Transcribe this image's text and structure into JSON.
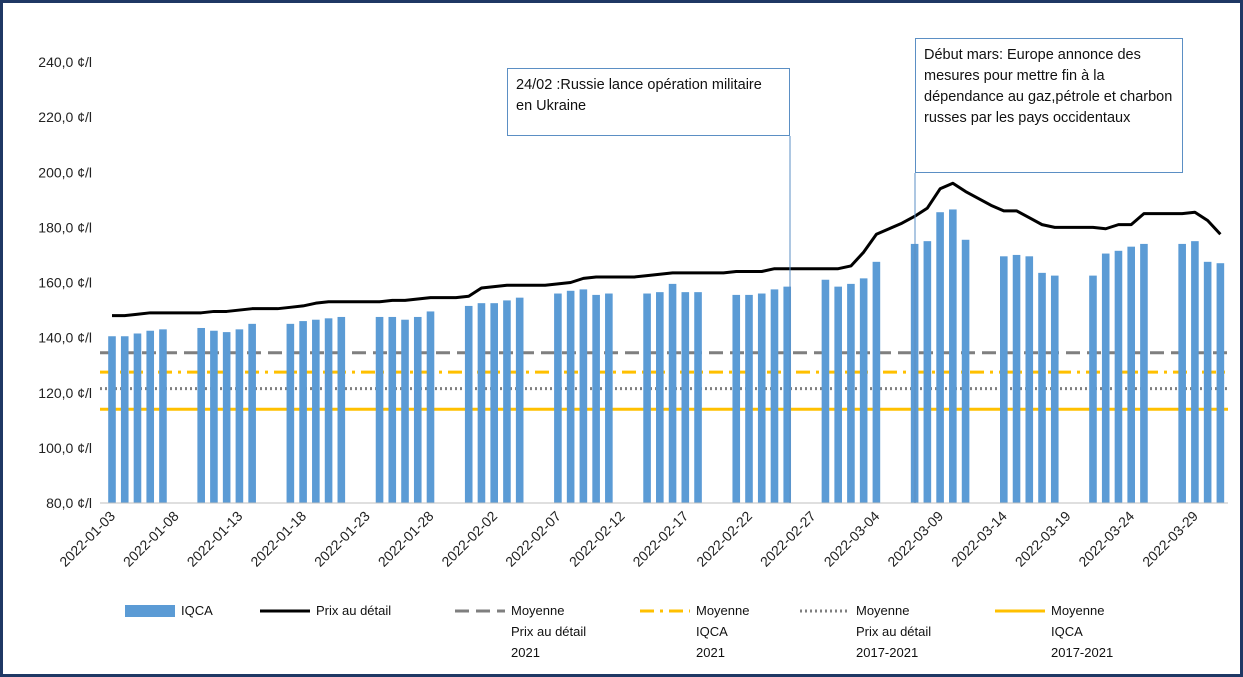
{
  "chart_data": {
    "type": "bar-line",
    "x": [
      "2022-01-03",
      "2022-01-04",
      "2022-01-05",
      "2022-01-06",
      "2022-01-07",
      "2022-01-08",
      "2022-01-09",
      "2022-01-10",
      "2022-01-11",
      "2022-01-12",
      "2022-01-13",
      "2022-01-14",
      "2022-01-15",
      "2022-01-16",
      "2022-01-17",
      "2022-01-18",
      "2022-01-19",
      "2022-01-20",
      "2022-01-21",
      "2022-01-22",
      "2022-01-23",
      "2022-01-24",
      "2022-01-25",
      "2022-01-26",
      "2022-01-27",
      "2022-01-28",
      "2022-01-29",
      "2022-01-30",
      "2022-01-31",
      "2022-02-01",
      "2022-02-02",
      "2022-02-03",
      "2022-02-04",
      "2022-02-05",
      "2022-02-06",
      "2022-02-07",
      "2022-02-08",
      "2022-02-09",
      "2022-02-10",
      "2022-02-11",
      "2022-02-12",
      "2022-02-13",
      "2022-02-14",
      "2022-02-15",
      "2022-02-16",
      "2022-02-17",
      "2022-02-18",
      "2022-02-19",
      "2022-02-20",
      "2022-02-21",
      "2022-02-22",
      "2022-02-23",
      "2022-02-24",
      "2022-02-25",
      "2022-02-26",
      "2022-02-27",
      "2022-02-28",
      "2022-03-01",
      "2022-03-02",
      "2022-03-03",
      "2022-03-04",
      "2022-03-05",
      "2022-03-06",
      "2022-03-07",
      "2022-03-08",
      "2022-03-09",
      "2022-03-10",
      "2022-03-11",
      "2022-03-12",
      "2022-03-13",
      "2022-03-14",
      "2022-03-15",
      "2022-03-16",
      "2022-03-17",
      "2022-03-18",
      "2022-03-19",
      "2022-03-20",
      "2022-03-21",
      "2022-03-22",
      "2022-03-23",
      "2022-03-24",
      "2022-03-25",
      "2022-03-26",
      "2022-03-27",
      "2022-03-28",
      "2022-03-29",
      "2022-03-30",
      "2022-03-31"
    ],
    "xticks": [
      "2022-01-03",
      "2022-01-08",
      "2022-01-13",
      "2022-01-18",
      "2022-01-23",
      "2022-01-28",
      "2022-02-02",
      "2022-02-07",
      "2022-02-12",
      "2022-02-17",
      "2022-02-22",
      "2022-02-27",
      "2022-03-04",
      "2022-03-09",
      "2022-03-14",
      "2022-03-19",
      "2022-03-24",
      "2022-03-29"
    ],
    "ylim": [
      80,
      240
    ],
    "yticks": [
      {
        "value": 80,
        "label": "80,0 ¢/l"
      },
      {
        "value": 100,
        "label": "100,0 ¢/l"
      },
      {
        "value": 120,
        "label": "120,0 ¢/l"
      },
      {
        "value": 140,
        "label": "140,0 ¢/l"
      },
      {
        "value": 160,
        "label": "160,0 ¢/l"
      },
      {
        "value": 180,
        "label": "180,0 ¢/l"
      },
      {
        "value": 200,
        "label": "200,0 ¢/l"
      },
      {
        "value": 220,
        "label": "220,0 ¢/l"
      },
      {
        "value": 240,
        "label": "240,0 ¢/l"
      }
    ],
    "series": [
      {
        "name": "IQCA",
        "kind": "bar",
        "color": "#5b9bd5",
        "values": [
          140.5,
          140.5,
          141.5,
          142.5,
          143,
          null,
          null,
          143.5,
          142.5,
          142,
          143,
          145,
          null,
          null,
          145,
          146,
          146.5,
          147,
          147.5,
          null,
          null,
          147.5,
          147.5,
          146.5,
          147.5,
          149.5,
          null,
          null,
          151.5,
          152.5,
          152.5,
          153.5,
          154.5,
          null,
          null,
          156,
          157,
          157.5,
          155.5,
          156,
          null,
          null,
          156,
          156.5,
          159.5,
          156.5,
          156.5,
          null,
          null,
          155.5,
          155.5,
          156,
          157.5,
          158.5,
          null,
          null,
          161,
          158.5,
          159.5,
          161.5,
          167.5,
          null,
          null,
          174,
          175,
          185.5,
          186.5,
          175.5,
          null,
          null,
          169.5,
          170,
          169.5,
          163.5,
          162.5,
          null,
          null,
          162.5,
          170.5,
          171.5,
          173,
          174,
          null,
          null,
          174,
          175,
          167.5,
          167
        ]
      },
      {
        "name": "Prix au détail",
        "kind": "line",
        "color": "#000000",
        "values": [
          148,
          148,
          148.5,
          149,
          149,
          149,
          149,
          149,
          149.5,
          149.5,
          150,
          150.5,
          150.5,
          150.5,
          151,
          151.5,
          152.5,
          153,
          153,
          153,
          153,
          153,
          153.5,
          153.5,
          154,
          154.5,
          154.5,
          154.5,
          155,
          158,
          158.5,
          159,
          159,
          159,
          159,
          159.5,
          160,
          161.5,
          162,
          162,
          162,
          162,
          162.5,
          163,
          163.5,
          163.5,
          163.5,
          163.5,
          163.5,
          164,
          164,
          164,
          165,
          165,
          165,
          165,
          165,
          165,
          166,
          171,
          177.5,
          179.5,
          181.5,
          184,
          187,
          194,
          196,
          193,
          190.5,
          188,
          186,
          186,
          183.5,
          181,
          180,
          180,
          180,
          180,
          179.5,
          181,
          181,
          185,
          185,
          185,
          185,
          185.5,
          182.5,
          177.5
        ]
      },
      {
        "name": "Moyenne\nPrix au détail\n2021",
        "kind": "hline",
        "dash": "dashed",
        "color": "#7f7f7f",
        "value": 134.5
      },
      {
        "name": "Moyenne\nIQCA\n2021",
        "kind": "hline",
        "dash": "dashdot",
        "color": "#ffc000",
        "value": 127.5
      },
      {
        "name": "Moyenne\nPrix au détail\n2017-2021",
        "kind": "hline",
        "dash": "dotted",
        "color": "#7f7f7f",
        "value": 121.5
      },
      {
        "name": "Moyenne\nIQCA\n2017-2021",
        "kind": "hline",
        "dash": "solid",
        "color": "#ffc000",
        "value": 114
      }
    ],
    "annotations": [
      "24/02 :Russie lance opération militaire en Ukraine",
      "Début mars: Europe annonce des mesures pour mettre fin à la dépendance au gaz,pétrole et charbon russes par les pays occidentaux"
    ]
  }
}
